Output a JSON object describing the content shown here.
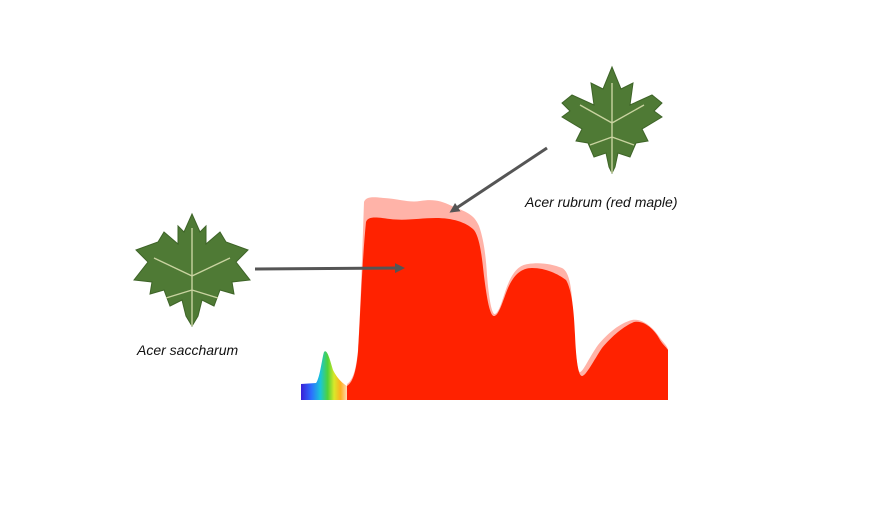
{
  "labels": {
    "acer_rubrum": "Acer rubrum (red maple)",
    "acer_saccharum": "Acer saccharum"
  },
  "colors": {
    "spectrum_primary": "#ff2200",
    "spectrum_secondary": "#ffb3a8",
    "arrow": "#555555",
    "leaf_fill": "#4f7a35",
    "leaf_vein": "#c9d3a0"
  },
  "icons": {
    "red_maple_leaf": "maple-leaf-icon",
    "sugar_maple_leaf": "maple-leaf-icon"
  }
}
